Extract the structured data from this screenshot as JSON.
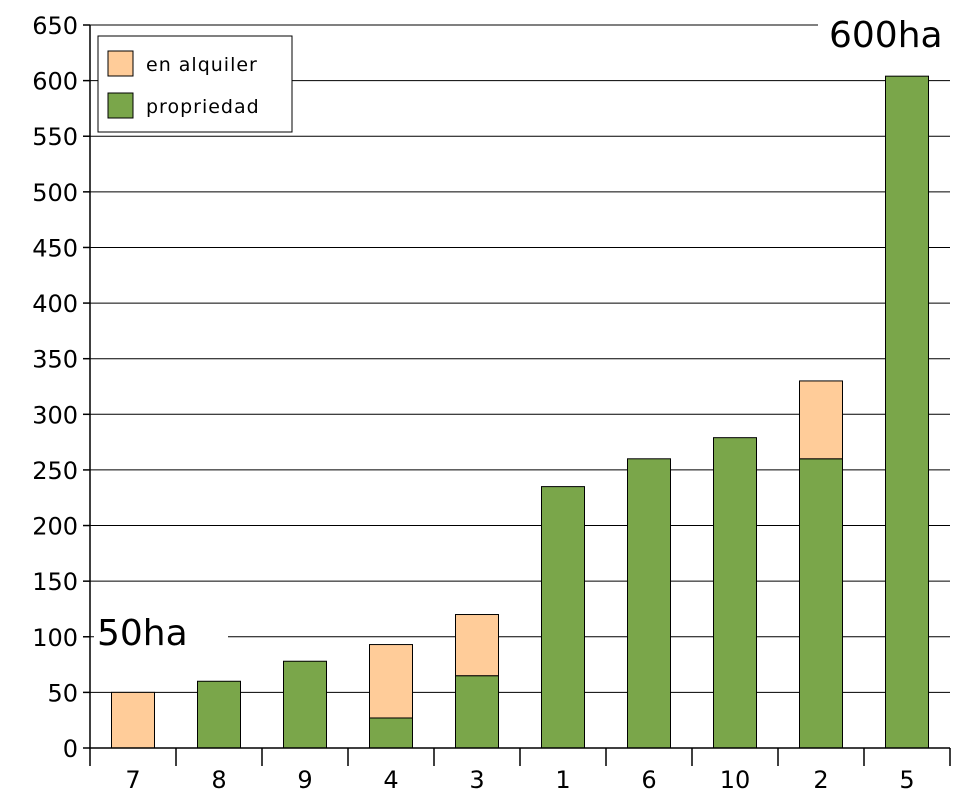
{
  "chart_data": {
    "type": "bar",
    "stacked": true,
    "categories": [
      "7",
      "8",
      "9",
      "4",
      "3",
      "1",
      "6",
      "10",
      "2",
      "5"
    ],
    "series": [
      {
        "name": "propriedad",
        "color": "#7AA64A",
        "values": [
          0,
          60,
          78,
          27,
          65,
          235,
          260,
          279,
          260,
          604
        ]
      },
      {
        "name": "en alquiler",
        "color": "#FFCC99",
        "values": [
          50,
          0,
          0,
          66,
          55,
          0,
          0,
          0,
          70,
          0
        ]
      }
    ],
    "ylim": [
      0,
      650
    ],
    "yticks": [
      0,
      50,
      100,
      150,
      200,
      250,
      300,
      350,
      400,
      450,
      500,
      550,
      600,
      650
    ],
    "grid": true,
    "legend": {
      "placement": "top-left",
      "entries": [
        {
          "label": "en alquiler",
          "color": "#FFCC99"
        },
        {
          "label": "propriedad",
          "color": "#7AA64A"
        }
      ]
    },
    "annotations": {
      "left": "50ha",
      "right": "600ha"
    }
  }
}
